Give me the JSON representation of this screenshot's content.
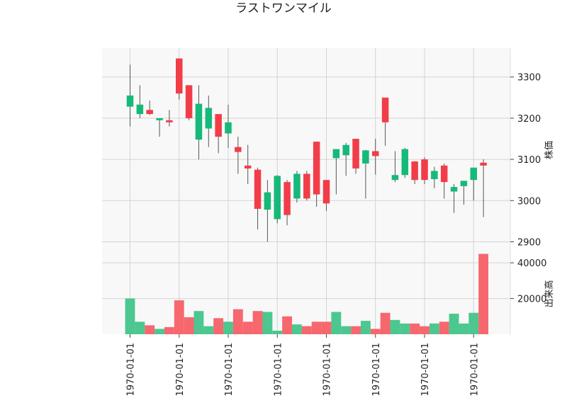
{
  "chart_data": {
    "type": "candlestick",
    "title": "ラストワンマイル",
    "colors": {
      "up": "#16b979",
      "down": "#f23d48",
      "up_volume": "#4cc78f",
      "down_volume": "#f6676e"
    },
    "grid": true,
    "price_panel": {
      "ylabel": "株価",
      "ylim": [
        2875,
        3370
      ],
      "yticks": [
        2900,
        3000,
        3100,
        3200,
        3300
      ],
      "ytick_labels": [
        "2900",
        "3000",
        "3100",
        "3200",
        "3300"
      ]
    },
    "volume_panel": {
      "ylabel": "出来高",
      "ylim": [
        0,
        46000
      ],
      "yticks": [
        20000,
        40000
      ],
      "ytick_labels": [
        "20000",
        "40000"
      ]
    },
    "x_tick_labels": [
      "1970-01-01",
      "1970-01-01",
      "1970-01-01",
      "1970-01-01",
      "1970-01-01",
      "1970-01-01",
      "1970-01-01",
      "1970-01-01"
    ],
    "x_tick_index": [
      0,
      5,
      10,
      15,
      20,
      25,
      30,
      35
    ],
    "candles": [
      {
        "o": 3228,
        "h": 3330,
        "l": 3180,
        "c": 3255,
        "v": 20000
      },
      {
        "o": 3210,
        "h": 3280,
        "l": 3200,
        "c": 3233,
        "v": 7000
      },
      {
        "o": 3220,
        "h": 3243,
        "l": 3208,
        "c": 3210,
        "v": 5000
      },
      {
        "o": 3195,
        "h": 3200,
        "l": 3155,
        "c": 3200,
        "v": 3000
      },
      {
        "o": 3195,
        "h": 3220,
        "l": 3180,
        "c": 3190,
        "v": 4000
      },
      {
        "o": 3345,
        "h": 3345,
        "l": 3245,
        "c": 3260,
        "v": 19000
      },
      {
        "o": 3280,
        "h": 3280,
        "l": 3195,
        "c": 3200,
        "v": 9500
      },
      {
        "o": 3148,
        "h": 3280,
        "l": 3100,
        "c": 3235,
        "v": 13000
      },
      {
        "o": 3175,
        "h": 3255,
        "l": 3130,
        "c": 3225,
        "v": 4500
      },
      {
        "o": 3210,
        "h": 3210,
        "l": 3115,
        "c": 3155,
        "v": 9000
      },
      {
        "o": 3163,
        "h": 3233,
        "l": 3128,
        "c": 3190,
        "v": 7000
      },
      {
        "o": 3130,
        "h": 3155,
        "l": 3065,
        "c": 3118,
        "v": 14000
      },
      {
        "o": 3085,
        "h": 3135,
        "l": 3040,
        "c": 3078,
        "v": 7000
      },
      {
        "o": 3075,
        "h": 3080,
        "l": 2930,
        "c": 2980,
        "v": 13000
      },
      {
        "o": 2978,
        "h": 3050,
        "l": 2900,
        "c": 3020,
        "v": 12500
      },
      {
        "o": 2955,
        "h": 3062,
        "l": 2945,
        "c": 3060,
        "v": 2000
      },
      {
        "o": 3045,
        "h": 3050,
        "l": 2940,
        "c": 2965,
        "v": 10000
      },
      {
        "o": 3005,
        "h": 3072,
        "l": 2995,
        "c": 3065,
        "v": 5500
      },
      {
        "o": 3065,
        "h": 3072,
        "l": 3000,
        "c": 3005,
        "v": 4500
      },
      {
        "o": 3143,
        "h": 3143,
        "l": 2985,
        "c": 3015,
        "v": 7000
      },
      {
        "o": 3050,
        "h": 3050,
        "l": 2975,
        "c": 2993,
        "v": 7000
      },
      {
        "o": 3103,
        "h": 3125,
        "l": 3015,
        "c": 3125,
        "v": 12500
      },
      {
        "o": 3110,
        "h": 3140,
        "l": 3060,
        "c": 3135,
        "v": 4500
      },
      {
        "o": 3150,
        "h": 3150,
        "l": 3065,
        "c": 3078,
        "v": 4500
      },
      {
        "o": 3090,
        "h": 3123,
        "l": 3005,
        "c": 3122,
        "v": 7500
      },
      {
        "o": 3120,
        "h": 3150,
        "l": 3063,
        "c": 3108,
        "v": 3000
      },
      {
        "o": 3250,
        "h": 3250,
        "l": 3133,
        "c": 3190,
        "v": 12000
      },
      {
        "o": 3050,
        "h": 3120,
        "l": 3045,
        "c": 3062,
        "v": 8000
      },
      {
        "o": 3062,
        "h": 3128,
        "l": 3055,
        "c": 3125,
        "v": 6000
      },
      {
        "o": 3095,
        "h": 3096,
        "l": 3040,
        "c": 3050,
        "v": 6000
      },
      {
        "o": 3100,
        "h": 3105,
        "l": 3040,
        "c": 3050,
        "v": 4500
      },
      {
        "o": 3052,
        "h": 3082,
        "l": 3030,
        "c": 3072,
        "v": 6000
      },
      {
        "o": 3085,
        "h": 3090,
        "l": 3005,
        "c": 3045,
        "v": 7000
      },
      {
        "o": 3022,
        "h": 3040,
        "l": 2970,
        "c": 3033,
        "v": 11500
      },
      {
        "o": 3035,
        "h": 3048,
        "l": 2990,
        "c": 3048,
        "v": 6000
      },
      {
        "o": 3050,
        "h": 3080,
        "l": 3000,
        "c": 3080,
        "v": 12000
      },
      {
        "o": 3092,
        "h": 3100,
        "l": 2960,
        "c": 3085,
        "v": 45000
      }
    ]
  }
}
